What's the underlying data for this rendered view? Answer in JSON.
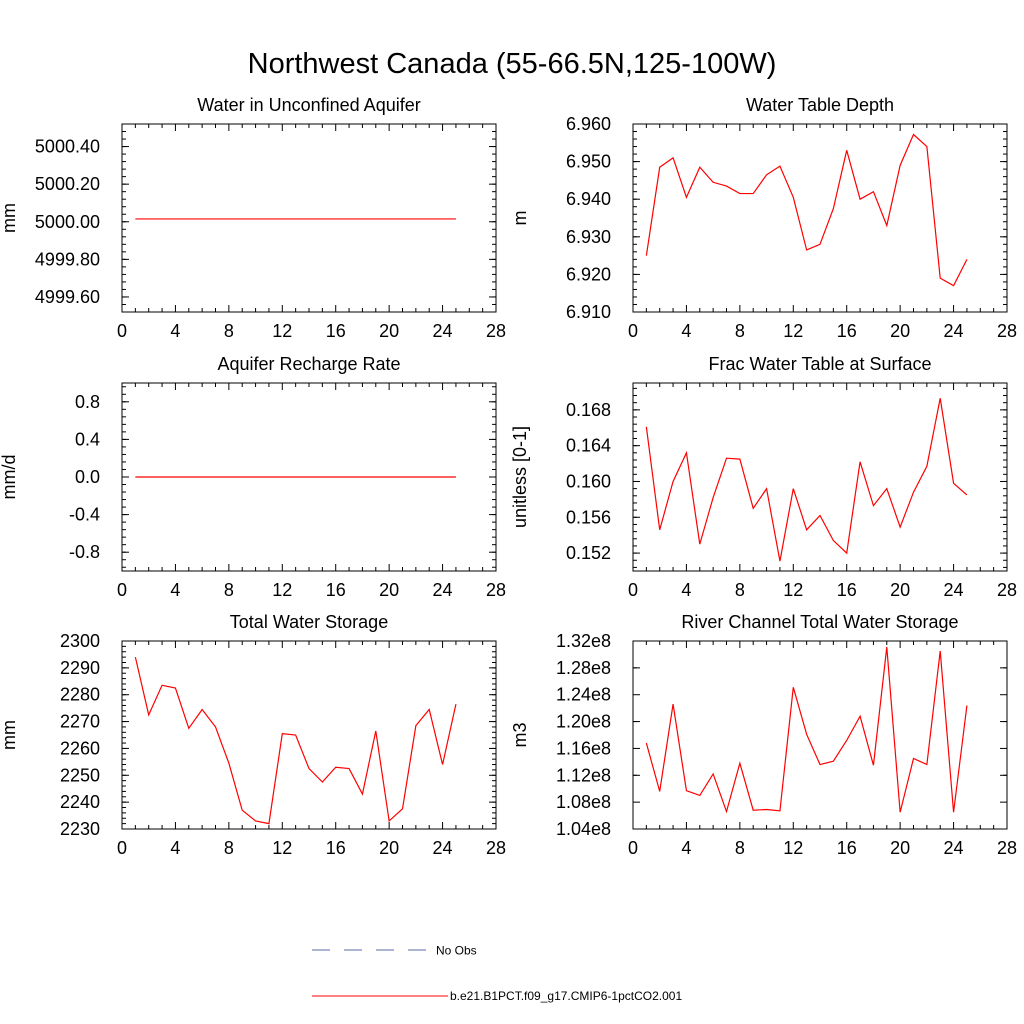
{
  "title": "Northwest Canada (55-66.5N,125-100W)",
  "colors": {
    "model": "#ff0000",
    "obs": "#5a6aa8",
    "axis": "#000000"
  },
  "legend": {
    "obs_label": "No Obs",
    "model_label": "b.e21.B1PCT.f09_g17.CMIP6-1pctCO2.001"
  },
  "chart_data": [
    {
      "type": "line",
      "title": "Water in Unconfined Aquifer",
      "ylabel": "mm",
      "xlim": [
        0,
        28
      ],
      "xticks": [
        0,
        4,
        8,
        12,
        16,
        20,
        24,
        28
      ],
      "ylim": [
        4999.52,
        5000.52
      ],
      "yticks": [
        4999.6,
        4999.8,
        5000.0,
        5000.2,
        5000.4
      ],
      "ytick_labels": [
        "4999.60",
        "4999.80",
        "5000.00",
        "5000.20",
        "5000.40"
      ],
      "yminor_step": 0.04,
      "x": [
        1,
        2,
        3,
        4,
        5,
        6,
        7,
        8,
        9,
        10,
        11,
        12,
        13,
        14,
        15,
        16,
        17,
        18,
        19,
        20,
        21,
        22,
        23,
        24,
        25
      ],
      "values": [
        5000.015,
        5000.015,
        5000.015,
        5000.015,
        5000.015,
        5000.015,
        5000.015,
        5000.015,
        5000.015,
        5000.015,
        5000.015,
        5000.015,
        5000.015,
        5000.015,
        5000.015,
        5000.015,
        5000.015,
        5000.015,
        5000.015,
        5000.015,
        5000.015,
        5000.015,
        5000.015,
        5000.015,
        5000.015
      ]
    },
    {
      "type": "line",
      "title": "Water Table Depth",
      "ylabel": "m",
      "xlim": [
        0,
        28
      ],
      "xticks": [
        0,
        4,
        8,
        12,
        16,
        20,
        24,
        28
      ],
      "ylim": [
        6.91,
        6.96
      ],
      "yticks": [
        6.91,
        6.92,
        6.93,
        6.94,
        6.95,
        6.96
      ],
      "ytick_labels": [
        "6.910",
        "6.920",
        "6.930",
        "6.940",
        "6.950",
        "6.960"
      ],
      "yminor_step": 0.002,
      "x": [
        1,
        2,
        3,
        4,
        5,
        6,
        7,
        8,
        9,
        10,
        11,
        12,
        13,
        14,
        15,
        16,
        17,
        18,
        19,
        20,
        21,
        22,
        23,
        24,
        25
      ],
      "values": [
        6.925,
        6.9485,
        6.951,
        6.9405,
        6.9485,
        6.9445,
        6.9435,
        6.9415,
        6.9415,
        6.9465,
        6.9488,
        6.9405,
        6.9265,
        6.928,
        6.9375,
        6.953,
        6.94,
        6.942,
        6.933,
        6.949,
        6.9572,
        6.954,
        6.919,
        6.917,
        6.924
      ]
    },
    {
      "type": "line",
      "title": "Aquifer Recharge Rate",
      "ylabel": "mm/d",
      "xlim": [
        0,
        28
      ],
      "xticks": [
        0,
        4,
        8,
        12,
        16,
        20,
        24,
        28
      ],
      "ylim": [
        -1.0,
        1.0
      ],
      "yticks": [
        -0.8,
        -0.4,
        0.0,
        0.4,
        0.8
      ],
      "ytick_labels": [
        "-0.8",
        "-0.4",
        "0.0",
        "0.4",
        "0.8"
      ],
      "yminor_step": 0.08,
      "x": [
        1,
        2,
        3,
        4,
        5,
        6,
        7,
        8,
        9,
        10,
        11,
        12,
        13,
        14,
        15,
        16,
        17,
        18,
        19,
        20,
        21,
        22,
        23,
        24,
        25
      ],
      "values": [
        0,
        0,
        0,
        0,
        0,
        0,
        0,
        0,
        0,
        0,
        0,
        0,
        0,
        0,
        0,
        0,
        0,
        0,
        0,
        0,
        0,
        0,
        0,
        0,
        0
      ]
    },
    {
      "type": "line",
      "title": "Frac Water Table at Surface",
      "ylabel": "unitless [0-1]",
      "xlim": [
        0,
        28
      ],
      "xticks": [
        0,
        4,
        8,
        12,
        16,
        20,
        24,
        28
      ],
      "ylim": [
        0.15,
        0.171
      ],
      "yticks": [
        0.152,
        0.156,
        0.16,
        0.164,
        0.168
      ],
      "ytick_labels": [
        "0.152",
        "0.156",
        "0.160",
        "0.164",
        "0.168"
      ],
      "yminor_step": 0.0008,
      "x": [
        1,
        2,
        3,
        4,
        5,
        6,
        7,
        8,
        9,
        10,
        11,
        12,
        13,
        14,
        15,
        16,
        17,
        18,
        19,
        20,
        21,
        22,
        23,
        24,
        25
      ],
      "values": [
        0.1661,
        0.1546,
        0.16,
        0.1632,
        0.153,
        0.1582,
        0.1626,
        0.1625,
        0.157,
        0.1592,
        0.1511,
        0.1592,
        0.1546,
        0.1562,
        0.1534,
        0.152,
        0.1622,
        0.1573,
        0.1592,
        0.1549,
        0.1588,
        0.1617,
        0.1693,
        0.1598,
        0.1585
      ]
    },
    {
      "type": "line",
      "title": "Total Water Storage",
      "ylabel": "mm",
      "xlim": [
        0,
        28
      ],
      "xticks": [
        0,
        4,
        8,
        12,
        16,
        20,
        24,
        28
      ],
      "ylim": [
        2230,
        2300
      ],
      "yticks": [
        2230,
        2240,
        2250,
        2260,
        2270,
        2280,
        2290,
        2300
      ],
      "ytick_labels": [
        "2230",
        "2240",
        "2250",
        "2260",
        "2270",
        "2280",
        "2290",
        "2300"
      ],
      "yminor_step": 2,
      "x": [
        1,
        2,
        3,
        4,
        5,
        6,
        7,
        8,
        9,
        10,
        11,
        12,
        13,
        14,
        15,
        16,
        17,
        18,
        19,
        20,
        21,
        22,
        23,
        24,
        25
      ],
      "values": [
        2294,
        2272.5,
        2283.5,
        2282.5,
        2267.5,
        2274.5,
        2268,
        2254.5,
        2237,
        2233,
        2232,
        2265.5,
        2265,
        2252.5,
        2247.5,
        2253,
        2252.5,
        2243,
        2266.5,
        2233,
        2237.5,
        2268.5,
        2274.5,
        2254,
        2276.5
      ]
    },
    {
      "type": "line",
      "title": "River Channel Total Water Storage",
      "ylabel": "m3",
      "xlim": [
        0,
        28
      ],
      "xticks": [
        0,
        4,
        8,
        12,
        16,
        20,
        24,
        28
      ],
      "ylim": [
        104000000.0,
        132000000.0
      ],
      "yticks": [
        104000000.0,
        108000000.0,
        112000000.0,
        116000000.0,
        120000000.0,
        124000000.0,
        128000000.0,
        132000000.0
      ],
      "ytick_labels": [
        "1.04e8",
        "1.08e8",
        "1.12e8",
        "1.16e8",
        "1.20e8",
        "1.24e8",
        "1.28e8",
        "1.32e8"
      ],
      "yminor_step": 8000000.0,
      "x": [
        1,
        2,
        3,
        4,
        5,
        6,
        7,
        8,
        9,
        10,
        11,
        12,
        13,
        14,
        15,
        16,
        17,
        18,
        19,
        20,
        21,
        22,
        23,
        24,
        25
      ],
      "values": [
        116800000.0,
        109600000.0,
        122600000.0,
        109700000.0,
        109000000.0,
        112200000.0,
        106600000.0,
        113800000.0,
        106800000.0,
        106900000.0,
        106700000.0,
        125100000.0,
        118100000.0,
        113600000.0,
        114100000.0,
        117200000.0,
        120800000.0,
        113500000.0,
        131100000.0,
        106500000.0,
        114500000.0,
        113600000.0,
        130500000.0,
        106500000.0,
        122400000.0
      ]
    }
  ]
}
